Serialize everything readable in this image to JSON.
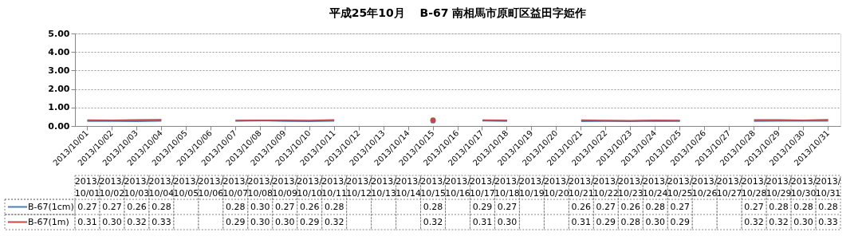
{
  "chart_data": {
    "type": "line",
    "title": "平成25年10月　 B-67 南相馬市原町区益田字姫作",
    "categories": [
      "2013/10/01",
      "2013/10/02",
      "2013/10/03",
      "2013/10/04",
      "2013/10/05",
      "2013/10/06",
      "2013/10/07",
      "2013/10/08",
      "2013/10/09",
      "2013/10/10",
      "2013/10/11",
      "2013/10/12",
      "2013/10/13",
      "2013/10/14",
      "2013/10/15",
      "2013/10/16",
      "2013/10/17",
      "2013/10/18",
      "2013/10/19",
      "2013/10/20",
      "2013/10/21",
      "2013/10/22",
      "2013/10/23",
      "2013/10/24",
      "2013/10/25",
      "2013/10/26",
      "2013/10/27",
      "2013/10/28",
      "2013/10/29",
      "2013/10/30",
      "2013/10/31"
    ],
    "series": [
      {
        "name": "B-67(1cm)",
        "color": "#4a7ebb",
        "values": [
          0.27,
          0.27,
          0.26,
          0.28,
          null,
          null,
          0.28,
          0.3,
          0.27,
          0.26,
          0.28,
          null,
          null,
          null,
          0.28,
          null,
          0.29,
          0.27,
          null,
          null,
          0.26,
          0.27,
          0.26,
          0.28,
          0.27,
          null,
          null,
          0.27,
          0.28,
          0.28,
          0.28
        ],
        "value_labels": [
          "0.27",
          "0.27",
          "0.26",
          "0.28",
          null,
          null,
          "0.28",
          "0.30",
          "0.27",
          "0.26",
          "0.28",
          null,
          null,
          null,
          "0.28",
          null,
          "0.29",
          "0.27",
          null,
          null,
          "0.26",
          "0.27",
          "0.26",
          "0.28",
          "0.27",
          null,
          null,
          "0.27",
          "0.28",
          "0.28",
          "0.28"
        ]
      },
      {
        "name": "B-67(1m)",
        "color": "#be4b48",
        "values": [
          0.31,
          0.3,
          0.32,
          0.33,
          null,
          null,
          0.29,
          0.3,
          0.3,
          0.29,
          0.32,
          null,
          null,
          null,
          0.32,
          null,
          0.31,
          0.3,
          null,
          null,
          0.31,
          0.29,
          0.28,
          0.3,
          0.29,
          null,
          null,
          0.32,
          0.32,
          0.3,
          0.33
        ],
        "value_labels": [
          "0.31",
          "0.30",
          "0.32",
          "0.33",
          null,
          null,
          "0.29",
          "0.30",
          "0.30",
          "0.29",
          "0.32",
          null,
          null,
          null,
          "0.32",
          null,
          "0.31",
          "0.30",
          null,
          null,
          "0.31",
          "0.29",
          "0.28",
          "0.30",
          "0.29",
          null,
          null,
          "0.32",
          "0.32",
          "0.30",
          "0.33"
        ]
      }
    ],
    "ylim": [
      0,
      5
    ],
    "yticks": [
      {
        "value": 0,
        "label": "0.00"
      },
      {
        "value": 1,
        "label": "1.00"
      },
      {
        "value": 2,
        "label": "2.00"
      },
      {
        "value": 3,
        "label": "3.00"
      },
      {
        "value": 4,
        "label": "4.00"
      },
      {
        "value": 5,
        "label": "5.00"
      }
    ],
    "grid": "y",
    "legend": "bottom",
    "marker": "none",
    "line_style": "solid"
  }
}
